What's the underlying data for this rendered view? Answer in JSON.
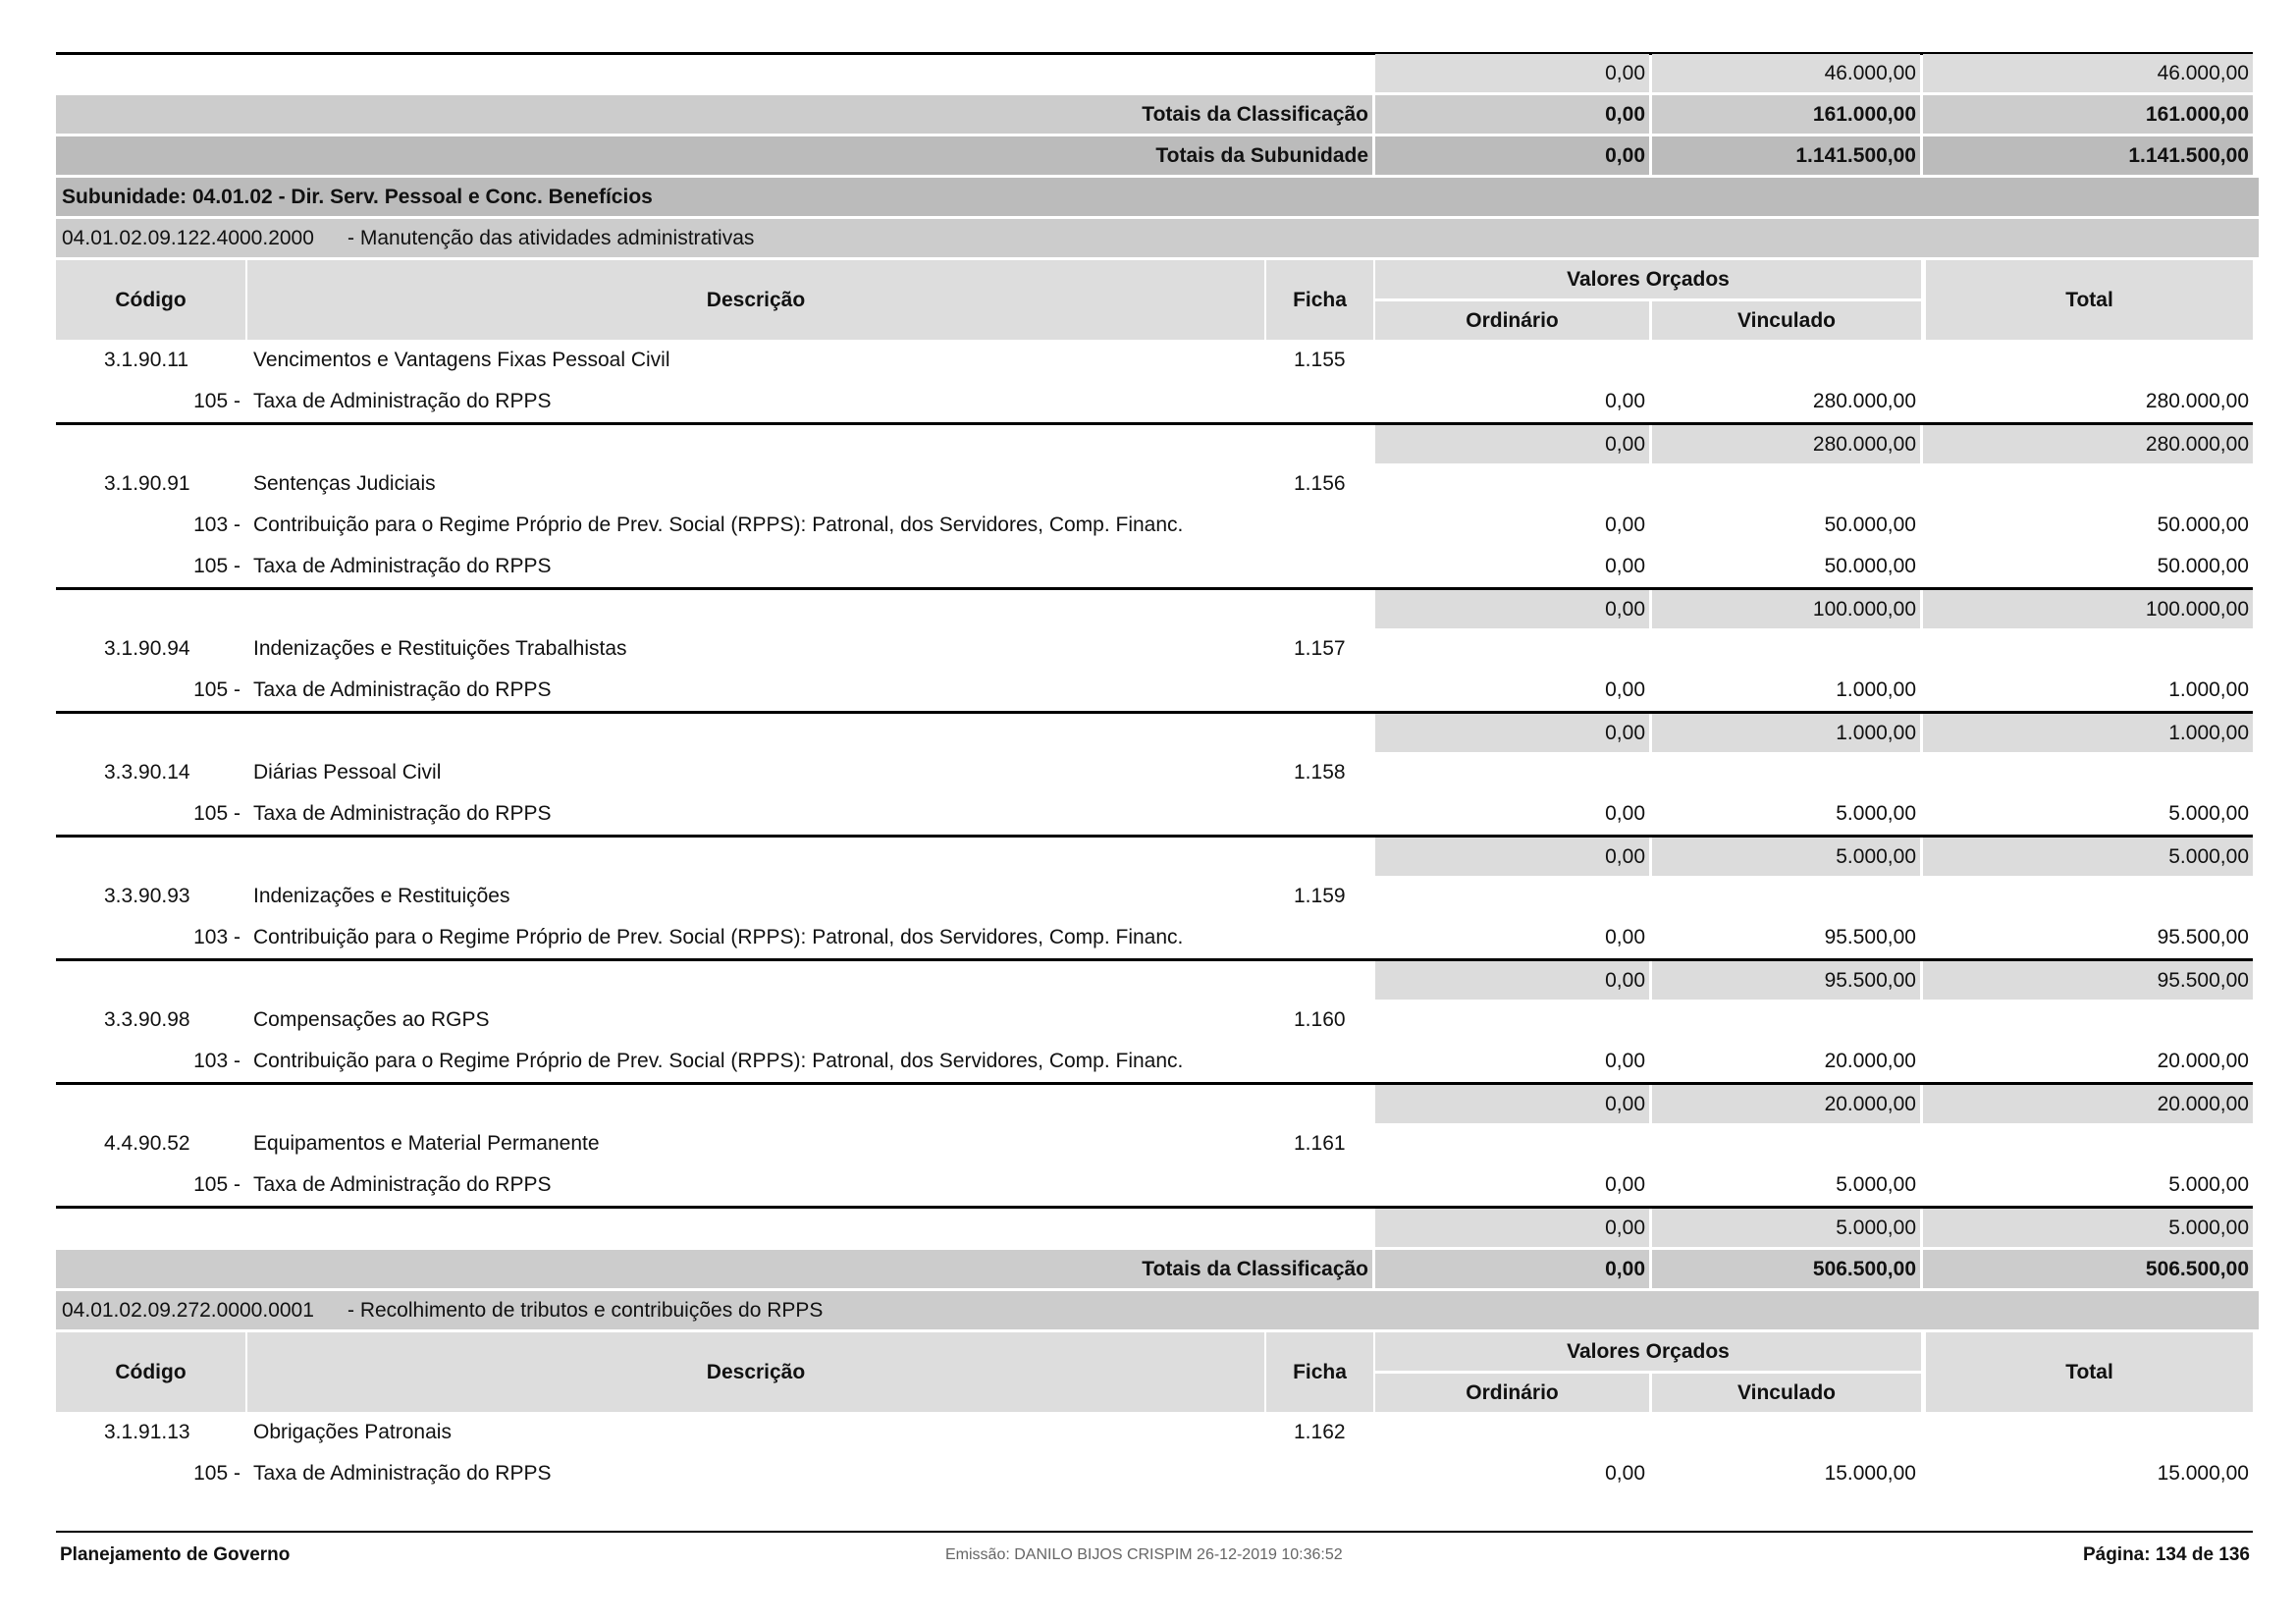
{
  "top_subtotal": {
    "ordinario": "0,00",
    "vinculado": "46.000,00",
    "total": "46.000,00"
  },
  "totais_classificacao_1": {
    "label": "Totais da Classificação",
    "ordinario": "0,00",
    "vinculado": "161.000,00",
    "total": "161.000,00"
  },
  "totais_subunidade": {
    "label": "Totais da Subunidade",
    "ordinario": "0,00",
    "vinculado": "1.141.500,00",
    "total": "1.141.500,00"
  },
  "subunidade": "Subunidade: 04.01.02 - Dir. Serv. Pessoal e Conc. Benefícios",
  "table_header": {
    "codigo": "Código",
    "descricao": "Descrição",
    "ficha": "Ficha",
    "valores_orcados": "Valores Orçados",
    "ordinario": "Ordinário",
    "vinculado": "Vinculado",
    "total": "Total"
  },
  "programs": [
    {
      "code": "04.01.02.09.122.4000.2000",
      "title": "- Manutenção das atividades administrativas",
      "items": [
        {
          "codigo": "3.1.90.11",
          "descricao": "Vencimentos e Vantagens Fixas  Pessoal Civil",
          "ficha": "1.155",
          "fontes": [
            {
              "code": "105 -",
              "descricao": "Taxa de Administração do RPPS",
              "ordinario": "0,00",
              "vinculado": "280.000,00",
              "total": "280.000,00"
            }
          ],
          "subtotal": {
            "ordinario": "0,00",
            "vinculado": "280.000,00",
            "total": "280.000,00"
          }
        },
        {
          "codigo": "3.1.90.91",
          "descricao": "Sentenças Judiciais",
          "ficha": "1.156",
          "fontes": [
            {
              "code": "103 -",
              "descricao": "Contribuição para o Regime Próprio de Prev. Social  (RPPS): Patronal, dos Servidores, Comp. Financ.",
              "ordinario": "0,00",
              "vinculado": "50.000,00",
              "total": "50.000,00"
            },
            {
              "code": "105 -",
              "descricao": "Taxa de Administração do RPPS",
              "ordinario": "0,00",
              "vinculado": "50.000,00",
              "total": "50.000,00"
            }
          ],
          "subtotal": {
            "ordinario": "0,00",
            "vinculado": "100.000,00",
            "total": "100.000,00"
          }
        },
        {
          "codigo": "3.1.90.94",
          "descricao": "Indenizações e Restituições Trabalhistas",
          "ficha": "1.157",
          "fontes": [
            {
              "code": "105 -",
              "descricao": "Taxa de Administração do RPPS",
              "ordinario": "0,00",
              "vinculado": "1.000,00",
              "total": "1.000,00"
            }
          ],
          "subtotal": {
            "ordinario": "0,00",
            "vinculado": "1.000,00",
            "total": "1.000,00"
          }
        },
        {
          "codigo": "3.3.90.14",
          "descricao": "Diárias  Pessoal Civil",
          "ficha": "1.158",
          "fontes": [
            {
              "code": "105 -",
              "descricao": "Taxa de Administração do RPPS",
              "ordinario": "0,00",
              "vinculado": "5.000,00",
              "total": "5.000,00"
            }
          ],
          "subtotal": {
            "ordinario": "0,00",
            "vinculado": "5.000,00",
            "total": "5.000,00"
          }
        },
        {
          "codigo": "3.3.90.93",
          "descricao": "Indenizações e Restituições",
          "ficha": "1.159",
          "fontes": [
            {
              "code": "103 -",
              "descricao": "Contribuição para o Regime Próprio de Prev. Social  (RPPS): Patronal, dos Servidores, Comp. Financ.",
              "ordinario": "0,00",
              "vinculado": "95.500,00",
              "total": "95.500,00"
            }
          ],
          "subtotal": {
            "ordinario": "0,00",
            "vinculado": "95.500,00",
            "total": "95.500,00"
          }
        },
        {
          "codigo": "3.3.90.98",
          "descricao": "Compensações ao RGPS",
          "ficha": "1.160",
          "fontes": [
            {
              "code": "103 -",
              "descricao": "Contribuição para o Regime Próprio de Prev. Social  (RPPS): Patronal, dos Servidores, Comp. Financ.",
              "ordinario": "0,00",
              "vinculado": "20.000,00",
              "total": "20.000,00"
            }
          ],
          "subtotal": {
            "ordinario": "0,00",
            "vinculado": "20.000,00",
            "total": "20.000,00"
          }
        },
        {
          "codigo": "4.4.90.52",
          "descricao": "Equipamentos e Material Permanente",
          "ficha": "1.161",
          "fontes": [
            {
              "code": "105 -",
              "descricao": "Taxa de Administração do RPPS",
              "ordinario": "0,00",
              "vinculado": "5.000,00",
              "total": "5.000,00"
            }
          ],
          "subtotal": {
            "ordinario": "0,00",
            "vinculado": "5.000,00",
            "total": "5.000,00"
          }
        }
      ],
      "totais": {
        "label": "Totais da Classificação",
        "ordinario": "0,00",
        "vinculado": "506.500,00",
        "total": "506.500,00"
      }
    },
    {
      "code": "04.01.02.09.272.0000.0001",
      "title": "- Recolhimento de tributos e contribuições do RPPS",
      "items": [
        {
          "codigo": "3.1.91.13",
          "descricao": "Obrigações Patronais",
          "ficha": "1.162",
          "fontes": [
            {
              "code": "105 -",
              "descricao": "Taxa de Administração do RPPS",
              "ordinario": "0,00",
              "vinculado": "15.000,00",
              "total": "15.000,00"
            }
          ]
        }
      ]
    }
  ],
  "footer": {
    "left": "Planejamento de Governo",
    "center": "Emissão: DANILO BIJOS CRISPIM 26-12-2019 10:36:52",
    "right": "Página: 134 de 136"
  }
}
